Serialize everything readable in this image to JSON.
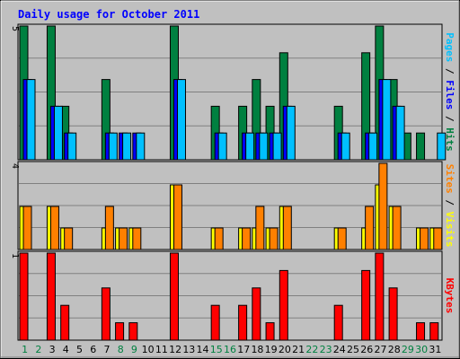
{
  "chart_data": {
    "type": "bar",
    "title": "Daily usage for October 2011",
    "categories": [
      "1",
      "2",
      "3",
      "4",
      "5",
      "6",
      "7",
      "8",
      "9",
      "10",
      "11",
      "12",
      "13",
      "14",
      "15",
      "16",
      "17",
      "18",
      "19",
      "20",
      "21",
      "22",
      "23",
      "24",
      "25",
      "26",
      "27",
      "28",
      "29",
      "30",
      "31"
    ],
    "weekend_days": [
      "1",
      "2",
      "8",
      "9",
      "15",
      "16",
      "22",
      "23",
      "29",
      "30"
    ],
    "panels": [
      {
        "id": "hits-files-pages",
        "axis_max_label": "5",
        "ylim": [
          0,
          5
        ],
        "label_parts": [
          {
            "text": "Pages",
            "color": "#00c0ff"
          },
          {
            "text": " / ",
            "color": "#000000"
          },
          {
            "text": "Files",
            "color": "#0000ff"
          },
          {
            "text": " / ",
            "color": "#000000"
          },
          {
            "text": "Hits",
            "color": "#008040"
          }
        ],
        "series": [
          {
            "name": "Hits",
            "color": "#008040",
            "values": [
              5,
              0,
              5,
              2,
              0,
              0,
              3,
              0,
              0,
              0,
              0,
              5,
              0,
              0,
              2,
              0,
              2,
              3,
              2,
              4,
              0,
              0,
              0,
              2,
              0,
              4,
              5,
              3,
              1,
              1,
              0
            ]
          },
          {
            "name": "Files",
            "color": "#0000ff",
            "values": [
              3,
              0,
              2,
              1,
              0,
              0,
              1,
              1,
              1,
              0,
              0,
              3,
              0,
              0,
              1,
              0,
              1,
              1,
              1,
              2,
              0,
              0,
              0,
              1,
              0,
              1,
              3,
              2,
              0,
              0,
              0
            ]
          },
          {
            "name": "Pages",
            "color": "#00c0ff",
            "values": [
              3,
              0,
              2,
              1,
              0,
              0,
              1,
              1,
              1,
              0,
              0,
              3,
              0,
              0,
              1,
              0,
              1,
              1,
              1,
              2,
              0,
              0,
              0,
              1,
              0,
              1,
              3,
              2,
              0,
              0,
              1
            ]
          }
        ]
      },
      {
        "id": "visits-sites",
        "axis_max_label": "4",
        "ylim": [
          0,
          4
        ],
        "label_parts": [
          {
            "text": "Sites",
            "color": "#ff8000"
          },
          {
            "text": " / ",
            "color": "#000000"
          },
          {
            "text": "Visits",
            "color": "#ffff00"
          }
        ],
        "series": [
          {
            "name": "Visits",
            "color": "#ffff00",
            "values": [
              2,
              0,
              2,
              1,
              0,
              0,
              1,
              1,
              1,
              0,
              0,
              3,
              0,
              0,
              1,
              0,
              1,
              1,
              1,
              2,
              0,
              0,
              0,
              1,
              0,
              1,
              3,
              2,
              0,
              1,
              1
            ]
          },
          {
            "name": "Sites",
            "color": "#ff8000",
            "values": [
              2,
              0,
              2,
              1,
              0,
              0,
              2,
              1,
              1,
              0,
              0,
              3,
              0,
              0,
              1,
              0,
              1,
              2,
              1,
              2,
              0,
              0,
              0,
              1,
              0,
              2,
              4,
              2,
              0,
              1,
              1
            ]
          }
        ]
      },
      {
        "id": "kbytes",
        "axis_max_label": "1",
        "ylim": [
          0,
          1
        ],
        "label_parts": [
          {
            "text": "KBytes",
            "color": "#ff0000"
          }
        ],
        "series": [
          {
            "name": "KBytes",
            "color": "#ff0000",
            "values": [
              1.0,
              0,
              1.0,
              0.4,
              0,
              0,
              0.6,
              0.2,
              0.2,
              0,
              0,
              1.0,
              0,
              0,
              0.4,
              0,
              0.4,
              0.6,
              0.2,
              0.8,
              0,
              0,
              0,
              0.4,
              0,
              0.8,
              1.0,
              0.6,
              0,
              0.2,
              0.2
            ]
          }
        ]
      }
    ],
    "colors": {
      "plot_background": "#c0c0c0",
      "gridline": "#808080",
      "title": "#0000ff",
      "weekday_label": "#000000",
      "weekend_label": "#008040"
    },
    "grid": true
  }
}
